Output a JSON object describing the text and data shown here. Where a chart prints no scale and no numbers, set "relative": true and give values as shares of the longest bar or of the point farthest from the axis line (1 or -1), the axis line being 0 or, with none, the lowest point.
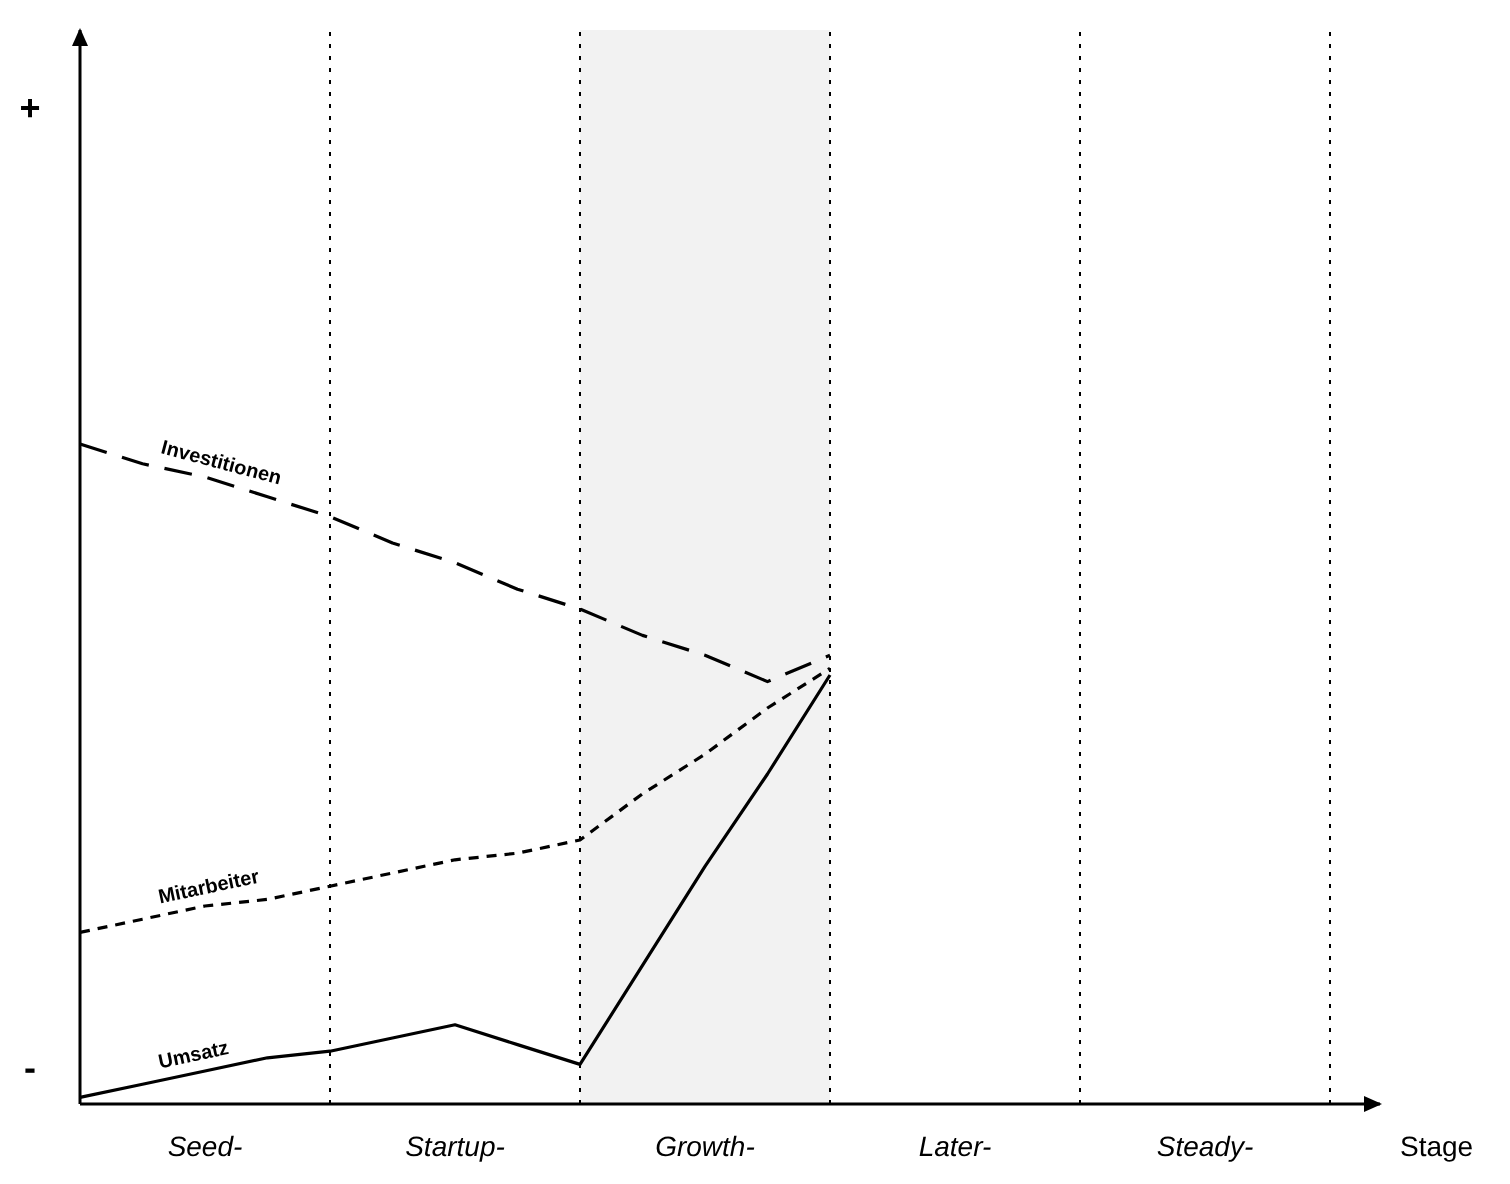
{
  "chart_data": {
    "type": "line",
    "relative": true,
    "xlabel": "Stage",
    "categories": [
      null,
      null,
      "Seed-",
      null,
      null,
      null,
      "Startup-",
      null,
      null,
      null,
      "Growth-",
      null,
      null,
      null,
      "Later-",
      null,
      null,
      null,
      "Steady-",
      null,
      null
    ],
    "series": [
      {
        "name": "Investitionen",
        "color": "#000000",
        "line_style": "dashed",
        "values": [
          1,
          0.97,
          0.95,
          0.92,
          0.89,
          0.85,
          0.82,
          0.78,
          0.75,
          0.71,
          0.68,
          0.64,
          0.68,
          null,
          null,
          null,
          null,
          null,
          null,
          null,
          null
        ]
      },
      {
        "name": "Mitarbeiter",
        "color": "#000000",
        "line_style": "dotted",
        "values": [
          0.26,
          0.28,
          0.3,
          0.31,
          0.33,
          0.35,
          0.37,
          0.38,
          0.4,
          0.47,
          0.53,
          0.6,
          0.66,
          null,
          null,
          null,
          null,
          null,
          null,
          null,
          null
        ]
      },
      {
        "name": "Umsatz",
        "color": "#000000",
        "line_style": "solid",
        "values": [
          0.01,
          0.03,
          0.05,
          0.07,
          0.08,
          0.1,
          0.12,
          0.09,
          0.06,
          0.21,
          0.36,
          0.5,
          0.65,
          null,
          null,
          null,
          null,
          null,
          null,
          null,
          null
        ]
      }
    ],
    "annotations": [
      "+",
      "-"
    ],
    "legend": false,
    "grid": "x"
  }
}
